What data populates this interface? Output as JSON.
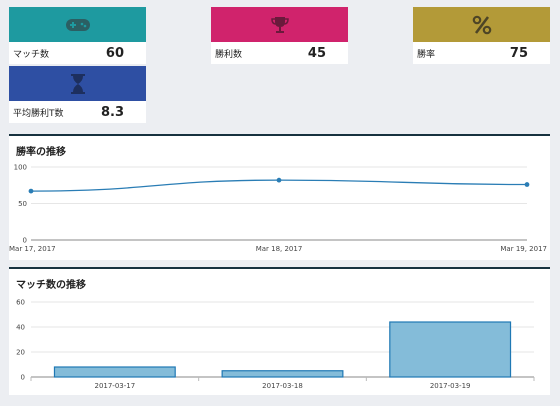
{
  "stats": {
    "matches": {
      "label": "マッチ数",
      "value": "60",
      "icon": "gamepad-icon",
      "color": "#1e9aa0"
    },
    "wins": {
      "label": "勝利数",
      "value": "45",
      "icon": "trophy-icon",
      "color": "#d0236c"
    },
    "win_rate": {
      "label": "勝率",
      "value": "75",
      "icon": "percent-icon",
      "color": "#b39a38"
    },
    "avg_turns": {
      "label": "平均勝利T数",
      "value": "8.3",
      "icon": "hourglass-icon",
      "color": "#2e4fa3"
    }
  },
  "winrate_panel": {
    "title": "勝率の推移"
  },
  "matches_panel": {
    "title": "マッチ数の推移"
  },
  "chart_data": [
    {
      "type": "line",
      "title": "勝率の推移",
      "x": [
        "Mar 17, 2017",
        "Mar 18, 2017",
        "Mar 19, 2017"
      ],
      "series": [
        {
          "values": [
            67,
            82,
            76
          ]
        }
      ],
      "ylim": [
        0,
        100
      ],
      "yticks": [
        0,
        50,
        100
      ],
      "grid": true,
      "color": "#2a7db5"
    },
    {
      "type": "bar",
      "title": "マッチ数の推移",
      "categories": [
        "2017-03-17",
        "2017-03-18",
        "2017-03-19"
      ],
      "values": [
        8,
        5,
        44
      ],
      "ylim": [
        0,
        60
      ],
      "yticks": [
        0,
        20,
        40,
        60
      ],
      "grid": true,
      "color": "#84bcd9",
      "stroke": "#1f78b4"
    }
  ]
}
